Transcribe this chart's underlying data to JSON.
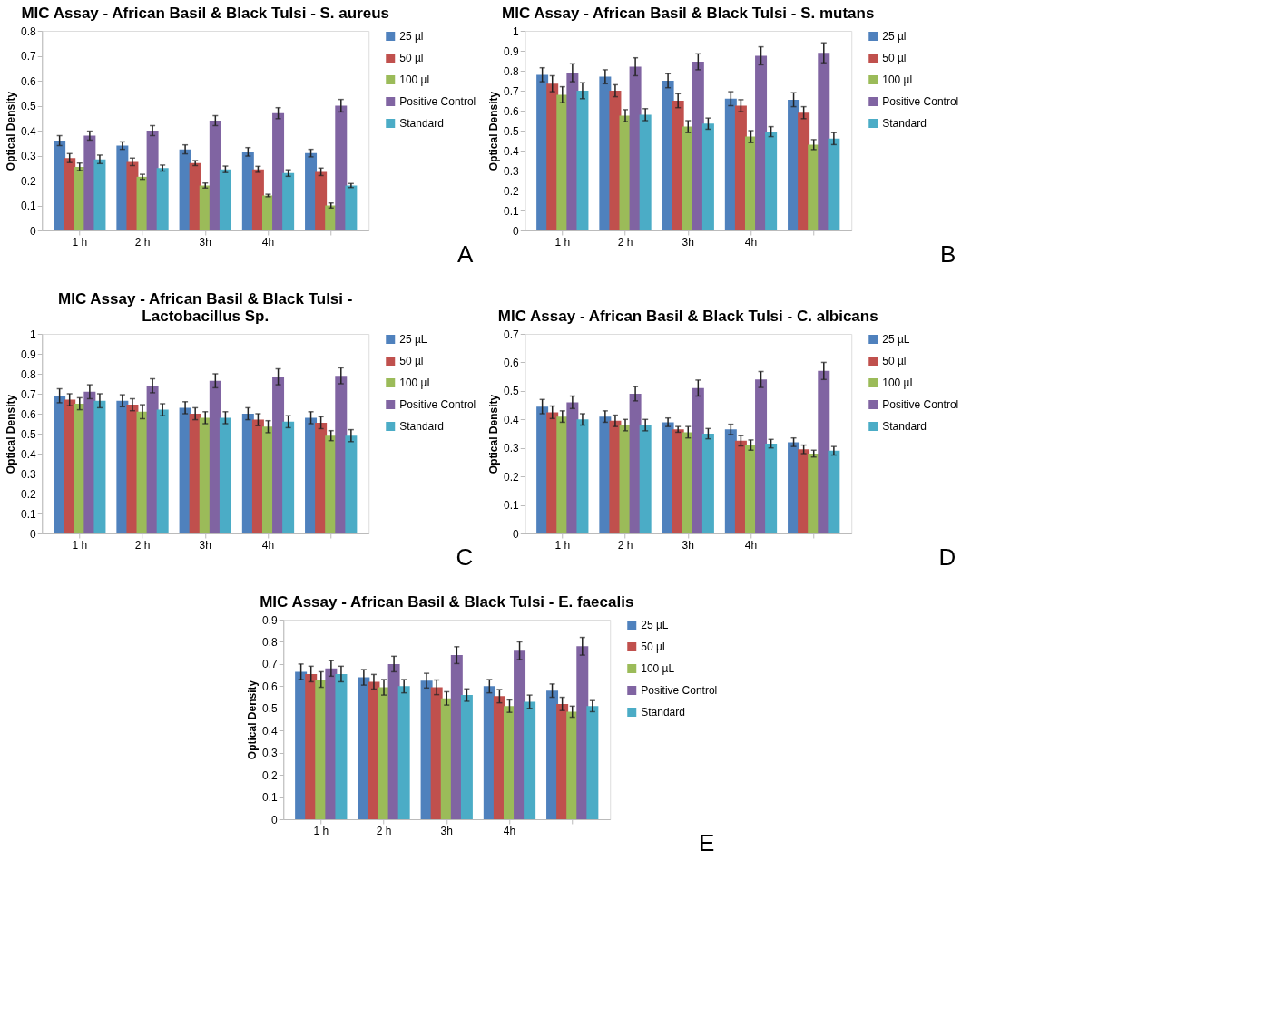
{
  "chart_data": [
    {
      "type": "bar",
      "title": "MIC Assay - African Basil & Black Tulsi - S. aureus",
      "ylabel": "Optical Density",
      "categories": [
        "1 h",
        "2 h",
        "3h",
        "4h",
        null
      ],
      "ylim": [
        0,
        0.8
      ],
      "yticks": [
        0,
        0.1,
        0.2,
        0.3,
        0.4,
        0.5,
        0.6,
        0.7,
        0.8
      ],
      "grid": false,
      "legend": "right",
      "annotations": [
        "A"
      ],
      "series": [
        {
          "name": "25 µl",
          "color": "#4f81bd",
          "values": [
            0.36,
            0.34,
            0.325,
            0.315,
            0.31
          ],
          "errors": [
            0.02,
            0.015,
            0.018,
            0.017,
            0.015
          ]
        },
        {
          "name": "50 µl",
          "color": "#c0504d",
          "values": [
            0.29,
            0.275,
            0.27,
            0.245,
            0.235
          ],
          "errors": [
            0.018,
            0.015,
            0.01,
            0.012,
            0.015
          ]
        },
        {
          "name": "100 µl",
          "color": "#9bbb59",
          "values": [
            0.255,
            0.215,
            0.18,
            0.14,
            0.1
          ],
          "errors": [
            0.015,
            0.01,
            0.01,
            0.005,
            0.01
          ]
        },
        {
          "name": "Positive Control",
          "color": "#8064a2",
          "values": [
            0.38,
            0.4,
            0.44,
            0.47,
            0.5
          ],
          "errors": [
            0.018,
            0.02,
            0.02,
            0.022,
            0.025
          ]
        },
        {
          "name": "Standard",
          "color": "#4bacc6",
          "values": [
            0.285,
            0.25,
            0.245,
            0.23,
            0.18
          ],
          "errors": [
            0.017,
            0.012,
            0.013,
            0.013,
            0.008
          ]
        }
      ]
    },
    {
      "type": "bar",
      "title": "MIC Assay - African Basil & Black Tulsi - S. mutans",
      "ylabel": "Optical Density",
      "categories": [
        "1 h",
        "2 h",
        "3h",
        "4h",
        null
      ],
      "ylim": [
        0,
        1
      ],
      "yticks": [
        0,
        0.1,
        0.2,
        0.3,
        0.4,
        0.5,
        0.6,
        0.7,
        0.8,
        0.9,
        1
      ],
      "grid": false,
      "legend": "right",
      "annotations": [
        "B"
      ],
      "series": [
        {
          "name": "25 µl",
          "color": "#4f81bd",
          "values": [
            0.78,
            0.77,
            0.75,
            0.66,
            0.655
          ],
          "errors": [
            0.035,
            0.035,
            0.035,
            0.035,
            0.035
          ]
        },
        {
          "name": "50 µl",
          "color": "#c0504d",
          "values": [
            0.735,
            0.7,
            0.65,
            0.625,
            0.59
          ],
          "errors": [
            0.04,
            0.03,
            0.035,
            0.03,
            0.03
          ]
        },
        {
          "name": "100 µl",
          "color": "#9bbb59",
          "values": [
            0.68,
            0.575,
            0.52,
            0.47,
            0.43
          ],
          "errors": [
            0.04,
            0.03,
            0.03,
            0.03,
            0.025
          ]
        },
        {
          "name": "Positive Control",
          "color": "#8064a2",
          "values": [
            0.79,
            0.82,
            0.845,
            0.875,
            0.89
          ],
          "errors": [
            0.045,
            0.045,
            0.04,
            0.045,
            0.05
          ]
        },
        {
          "name": "Standard",
          "color": "#4bacc6",
          "values": [
            0.7,
            0.58,
            0.535,
            0.495,
            0.46
          ],
          "errors": [
            0.04,
            0.03,
            0.028,
            0.025,
            0.03
          ]
        }
      ]
    },
    {
      "type": "bar",
      "title": "MIC Assay - African Basil & Black Tulsi -\nLactobacillus Sp.",
      "ylabel": "Optical Density",
      "categories": [
        "1 h",
        "2 h",
        "3h",
        "4h",
        null
      ],
      "ylim": [
        0,
        1
      ],
      "yticks": [
        0,
        0.1,
        0.2,
        0.3,
        0.4,
        0.5,
        0.6,
        0.7,
        0.8,
        0.9,
        1
      ],
      "grid": false,
      "legend": "right",
      "annotations": [
        "C"
      ],
      "series": [
        {
          "name": "25 µL",
          "color": "#4f81bd",
          "values": [
            0.69,
            0.665,
            0.63,
            0.6,
            0.58
          ],
          "errors": [
            0.035,
            0.03,
            0.03,
            0.03,
            0.03
          ]
        },
        {
          "name": "50 µl",
          "color": "#c0504d",
          "values": [
            0.67,
            0.645,
            0.6,
            0.57,
            0.555
          ],
          "errors": [
            0.03,
            0.03,
            0.03,
            0.03,
            0.03
          ]
        },
        {
          "name": "100 µL",
          "color": "#9bbb59",
          "values": [
            0.65,
            0.61,
            0.58,
            0.535,
            0.49
          ],
          "errors": [
            0.03,
            0.035,
            0.03,
            0.03,
            0.025
          ]
        },
        {
          "name": "Positive Control",
          "color": "#8064a2",
          "values": [
            0.71,
            0.74,
            0.765,
            0.785,
            0.79
          ],
          "errors": [
            0.035,
            0.035,
            0.035,
            0.04,
            0.04
          ]
        },
        {
          "name": "Standard",
          "color": "#4bacc6",
          "values": [
            0.665,
            0.62,
            0.58,
            0.56,
            0.49
          ],
          "errors": [
            0.035,
            0.03,
            0.03,
            0.03,
            0.03
          ]
        }
      ]
    },
    {
      "type": "bar",
      "title": "MIC Assay - African Basil & Black Tulsi - C. albicans",
      "ylabel": "Optical Density",
      "categories": [
        "1 h",
        "2 h",
        "3h",
        "4h",
        null
      ],
      "ylim": [
        0,
        0.7
      ],
      "yticks": [
        0,
        0.1,
        0.2,
        0.3,
        0.4,
        0.5,
        0.6,
        0.7
      ],
      "grid": false,
      "legend": "right",
      "annotations": [
        "D"
      ],
      "series": [
        {
          "name": "25 µL",
          "color": "#4f81bd",
          "values": [
            0.445,
            0.41,
            0.39,
            0.365,
            0.32
          ],
          "errors": [
            0.025,
            0.02,
            0.015,
            0.018,
            0.015
          ]
        },
        {
          "name": "50 µl",
          "color": "#c0504d",
          "values": [
            0.425,
            0.395,
            0.365,
            0.325,
            0.295
          ],
          "errors": [
            0.022,
            0.02,
            0.01,
            0.018,
            0.015
          ]
        },
        {
          "name": "100 µL",
          "color": "#9bbb59",
          "values": [
            0.41,
            0.38,
            0.355,
            0.31,
            0.28
          ],
          "errors": [
            0.02,
            0.02,
            0.02,
            0.018,
            0.012
          ]
        },
        {
          "name": "Positive Control",
          "color": "#8064a2",
          "values": [
            0.46,
            0.49,
            0.51,
            0.54,
            0.57
          ],
          "errors": [
            0.022,
            0.025,
            0.028,
            0.028,
            0.03
          ]
        },
        {
          "name": "Standard",
          "color": "#4bacc6",
          "values": [
            0.4,
            0.38,
            0.35,
            0.315,
            0.29
          ],
          "errors": [
            0.02,
            0.02,
            0.018,
            0.015,
            0.015
          ]
        }
      ]
    },
    {
      "type": "bar",
      "title": "MIC Assay - African Basil & Black Tulsi - E. faecalis",
      "ylabel": "Optical Density",
      "categories": [
        "1 h",
        "2 h",
        "3h",
        "4h",
        null
      ],
      "ylim": [
        0,
        0.9
      ],
      "yticks": [
        0,
        0.1,
        0.2,
        0.3,
        0.4,
        0.5,
        0.6,
        0.7,
        0.8,
        0.9
      ],
      "grid": false,
      "legend": "right",
      "annotations": [
        "E"
      ],
      "series": [
        {
          "name": "25 µL",
          "color": "#4f81bd",
          "values": [
            0.665,
            0.64,
            0.625,
            0.6,
            0.58
          ],
          "errors": [
            0.035,
            0.035,
            0.033,
            0.03,
            0.03
          ]
        },
        {
          "name": "50 µL",
          "color": "#c0504d",
          "values": [
            0.655,
            0.62,
            0.595,
            0.555,
            0.52
          ],
          "errors": [
            0.035,
            0.033,
            0.033,
            0.03,
            0.03
          ]
        },
        {
          "name": "100 µL",
          "color": "#9bbb59",
          "values": [
            0.63,
            0.595,
            0.545,
            0.51,
            0.485
          ],
          "errors": [
            0.035,
            0.035,
            0.03,
            0.028,
            0.025
          ]
        },
        {
          "name": "Positive Control",
          "color": "#8064a2",
          "values": [
            0.68,
            0.7,
            0.74,
            0.76,
            0.78
          ],
          "errors": [
            0.035,
            0.035,
            0.038,
            0.04,
            0.04
          ]
        },
        {
          "name": "Standard",
          "color": "#4bacc6",
          "values": [
            0.655,
            0.6,
            0.56,
            0.53,
            0.51
          ],
          "errors": [
            0.035,
            0.03,
            0.028,
            0.03,
            0.025
          ]
        }
      ]
    }
  ]
}
